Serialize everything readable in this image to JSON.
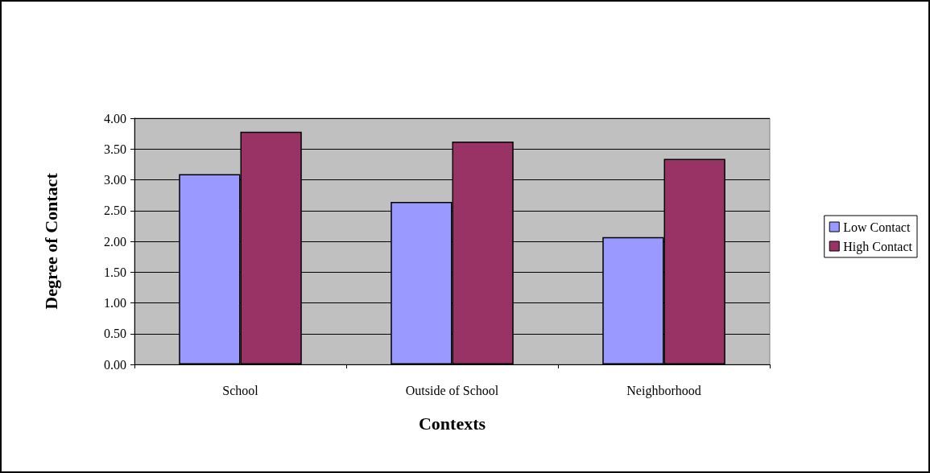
{
  "chart_data": {
    "type": "bar",
    "xlabel": "Contexts",
    "ylabel": "Degree of Contact",
    "categories": [
      "School",
      "Outside of School",
      "Neighborhood"
    ],
    "series": [
      {
        "name": "Low Contact",
        "color": "#9999ff",
        "values": [
          3.09,
          2.64,
          2.07
        ]
      },
      {
        "name": "High Contact",
        "color": "#993366",
        "values": [
          3.78,
          3.62,
          3.34
        ]
      }
    ],
    "ylim": [
      0,
      4
    ],
    "yticks": [
      {
        "value": 0,
        "label": "0.00"
      },
      {
        "value": 0.5,
        "label": "0.50"
      },
      {
        "value": 1,
        "label": "1.00"
      },
      {
        "value": 1.5,
        "label": "1.50"
      },
      {
        "value": 2,
        "label": "2.00"
      },
      {
        "value": 2.5,
        "label": "2.50"
      },
      {
        "value": 3,
        "label": "3.00"
      },
      {
        "value": 3.5,
        "label": "3.50"
      },
      {
        "value": 4,
        "label": "4.00"
      }
    ],
    "grid": "y",
    "legend": "right"
  }
}
